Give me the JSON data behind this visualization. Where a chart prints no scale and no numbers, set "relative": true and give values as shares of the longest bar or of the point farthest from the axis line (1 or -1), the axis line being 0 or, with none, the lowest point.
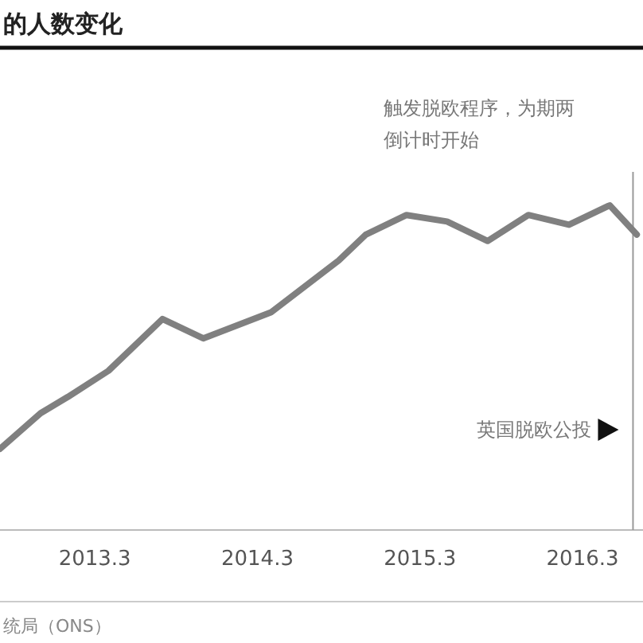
{
  "chart_data": {
    "type": "line",
    "title": "的人数变化",
    "relative": true,
    "x": [
      "2012-08",
      "2012-11",
      "2013-01",
      "2013-04",
      "2013-08",
      "2013-11",
      "2014-04",
      "2014-09",
      "2014-11",
      "2015-02",
      "2015-05",
      "2015-08",
      "2015-11",
      "2016-02",
      "2016-05",
      "2016-07"
    ],
    "series": [
      {
        "color": "#808080",
        "values": [
          0.25,
          0.36,
          0.41,
          0.49,
          0.65,
          0.59,
          0.67,
          0.83,
          0.91,
          0.97,
          0.95,
          0.89,
          0.97,
          0.94,
          1,
          0.91
        ]
      }
    ],
    "xlim": [
      "2012-08",
      "2016-07-15"
    ],
    "xticks": [
      {
        "value": "2013-03",
        "label": "2013.3"
      },
      {
        "value": "2014-03",
        "label": "2014.3"
      },
      {
        "value": "2015-03",
        "label": "2015.3"
      },
      {
        "value": "2016-03",
        "label": "2016.3"
      }
    ],
    "ref_lines": [
      {
        "axis": "x",
        "value": "2016-06-23",
        "label": "英国脱欧公投",
        "color": "#999999"
      }
    ],
    "annotations": [
      "触发脱欧程序，为期两",
      "倒计时开始",
      "统局（ONS）"
    ]
  }
}
